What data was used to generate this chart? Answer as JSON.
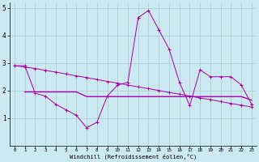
{
  "xlabel": "Windchill (Refroidissement éolien,°C)",
  "background_color": "#cce8f0",
  "grid_color": "#aacccc",
  "line_color": "#aa00aa",
  "xlim": [
    -0.5,
    23.5
  ],
  "ylim": [
    0,
    5.2
  ],
  "yticks": [
    1,
    2,
    3,
    4,
    5
  ],
  "xticks": [
    0,
    1,
    2,
    3,
    4,
    5,
    6,
    7,
    8,
    9,
    10,
    11,
    12,
    13,
    14,
    15,
    16,
    17,
    18,
    19,
    20,
    21,
    22,
    23
  ],
  "series1_x": [
    0,
    1,
    2,
    3,
    4,
    5,
    6,
    7,
    8,
    9,
    10,
    11,
    12,
    13,
    14,
    15,
    16,
    17,
    18,
    19,
    20,
    21,
    22,
    23
  ],
  "series1_y": [
    2.9,
    2.9,
    1.9,
    1.8,
    1.5,
    1.3,
    1.1,
    0.65,
    0.85,
    1.8,
    2.2,
    2.3,
    4.65,
    4.9,
    4.2,
    3.5,
    2.3,
    1.45,
    2.75,
    2.5,
    2.5,
    2.5,
    2.2,
    1.5
  ],
  "series2_x": [
    0,
    1,
    2,
    3,
    4,
    5,
    6,
    7,
    8,
    9,
    10,
    11,
    12,
    13,
    14,
    15,
    16,
    17,
    18,
    19,
    20,
    21,
    22,
    23
  ],
  "series2_y": [
    2.9,
    2.85,
    2.8,
    2.73,
    2.67,
    2.6,
    2.53,
    2.47,
    2.4,
    2.33,
    2.27,
    2.2,
    2.13,
    2.07,
    2.0,
    1.93,
    1.87,
    1.8,
    1.73,
    1.67,
    1.6,
    1.53,
    1.47,
    1.4
  ],
  "series3_x": [
    1,
    2,
    3,
    4,
    5,
    6,
    7,
    8,
    9,
    10,
    11,
    12,
    13,
    14,
    15,
    16,
    17,
    18,
    19,
    20,
    21,
    22,
    23
  ],
  "series3_y": [
    1.95,
    1.95,
    1.95,
    1.95,
    1.95,
    1.95,
    1.78,
    1.78,
    1.78,
    1.78,
    1.78,
    1.78,
    1.78,
    1.78,
    1.78,
    1.78,
    1.78,
    1.78,
    1.78,
    1.78,
    1.78,
    1.78,
    1.65
  ]
}
